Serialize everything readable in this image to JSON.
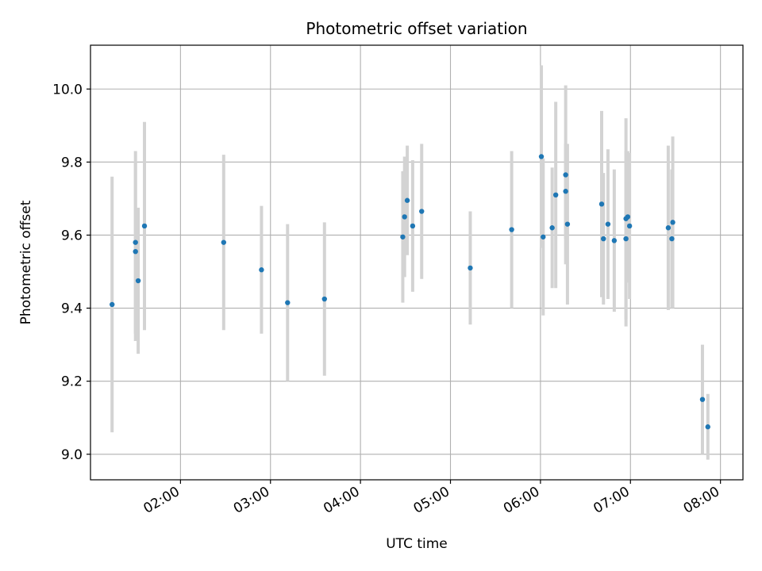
{
  "chart_data": {
    "type": "scatter",
    "title": "Photometric offset variation",
    "xlabel": "UTC time",
    "ylabel": "Photometric offset",
    "x_unit": "hours UTC",
    "xlim": [
      1.0,
      8.25
    ],
    "ylim": [
      8.93,
      10.12
    ],
    "x_ticks": [
      {
        "value": 2,
        "label": "02:00"
      },
      {
        "value": 3,
        "label": "03:00"
      },
      {
        "value": 4,
        "label": "04:00"
      },
      {
        "value": 5,
        "label": "05:00"
      },
      {
        "value": 6,
        "label": "06:00"
      },
      {
        "value": 7,
        "label": "07:00"
      },
      {
        "value": 8,
        "label": "08:00"
      }
    ],
    "y_ticks": [
      {
        "value": 9.0,
        "label": "9.0"
      },
      {
        "value": 9.2,
        "label": "9.2"
      },
      {
        "value": 9.4,
        "label": "9.4"
      },
      {
        "value": 9.6,
        "label": "9.6"
      },
      {
        "value": 9.8,
        "label": "9.8"
      },
      {
        "value": 10.0,
        "label": "10.0"
      }
    ],
    "grid": true,
    "marker_color": "#1f77b4",
    "errorbar_color": "#d3d3d3",
    "points": [
      {
        "x": 1.24,
        "y": 9.41,
        "yerr": 0.35
      },
      {
        "x": 1.5,
        "y": 9.58,
        "yerr": 0.25
      },
      {
        "x": 1.5,
        "y": 9.555,
        "yerr": 0.245
      },
      {
        "x": 1.53,
        "y": 9.475,
        "yerr": 0.2
      },
      {
        "x": 1.6,
        "y": 9.625,
        "yerr": 0.285
      },
      {
        "x": 2.48,
        "y": 9.58,
        "yerr": 0.24
      },
      {
        "x": 2.9,
        "y": 9.505,
        "yerr": 0.175
      },
      {
        "x": 3.19,
        "y": 9.415,
        "yerr": 0.215
      },
      {
        "x": 3.6,
        "y": 9.425,
        "yerr": 0.21
      },
      {
        "x": 4.47,
        "y": 9.595,
        "yerr": 0.18
      },
      {
        "x": 4.49,
        "y": 9.65,
        "yerr": 0.165
      },
      {
        "x": 4.52,
        "y": 9.695,
        "yerr": 0.15
      },
      {
        "x": 4.58,
        "y": 9.625,
        "yerr": 0.18
      },
      {
        "x": 4.68,
        "y": 9.665,
        "yerr": 0.185
      },
      {
        "x": 5.22,
        "y": 9.51,
        "yerr": 0.155
      },
      {
        "x": 5.68,
        "y": 9.615,
        "yerr": 0.215
      },
      {
        "x": 6.01,
        "y": 9.815,
        "yerr": 0.25
      },
      {
        "x": 6.03,
        "y": 9.595,
        "yerr": 0.215
      },
      {
        "x": 6.13,
        "y": 9.62,
        "yerr": 0.165
      },
      {
        "x": 6.17,
        "y": 9.71,
        "yerr": 0.255
      },
      {
        "x": 6.28,
        "y": 9.765,
        "yerr": 0.245
      },
      {
        "x": 6.28,
        "y": 9.72,
        "yerr": 0.13
      },
      {
        "x": 6.3,
        "y": 9.63,
        "yerr": 0.22
      },
      {
        "x": 6.68,
        "y": 9.685,
        "yerr": 0.255
      },
      {
        "x": 6.7,
        "y": 9.59,
        "yerr": 0.18
      },
      {
        "x": 6.75,
        "y": 9.63,
        "yerr": 0.205
      },
      {
        "x": 6.82,
        "y": 9.585,
        "yerr": 0.195
      },
      {
        "x": 6.95,
        "y": 9.59,
        "yerr": 0.24
      },
      {
        "x": 6.95,
        "y": 9.645,
        "yerr": 0.275
      },
      {
        "x": 6.97,
        "y": 9.65,
        "yerr": 0.18
      },
      {
        "x": 6.99,
        "y": 9.625,
        "yerr": 0.2
      },
      {
        "x": 7.42,
        "y": 9.62,
        "yerr": 0.225
      },
      {
        "x": 7.46,
        "y": 9.59,
        "yerr": 0.19
      },
      {
        "x": 7.47,
        "y": 9.635,
        "yerr": 0.235
      },
      {
        "x": 7.8,
        "y": 9.15,
        "yerr": 0.15
      },
      {
        "x": 7.86,
        "y": 9.075,
        "yerr": 0.09
      }
    ]
  }
}
